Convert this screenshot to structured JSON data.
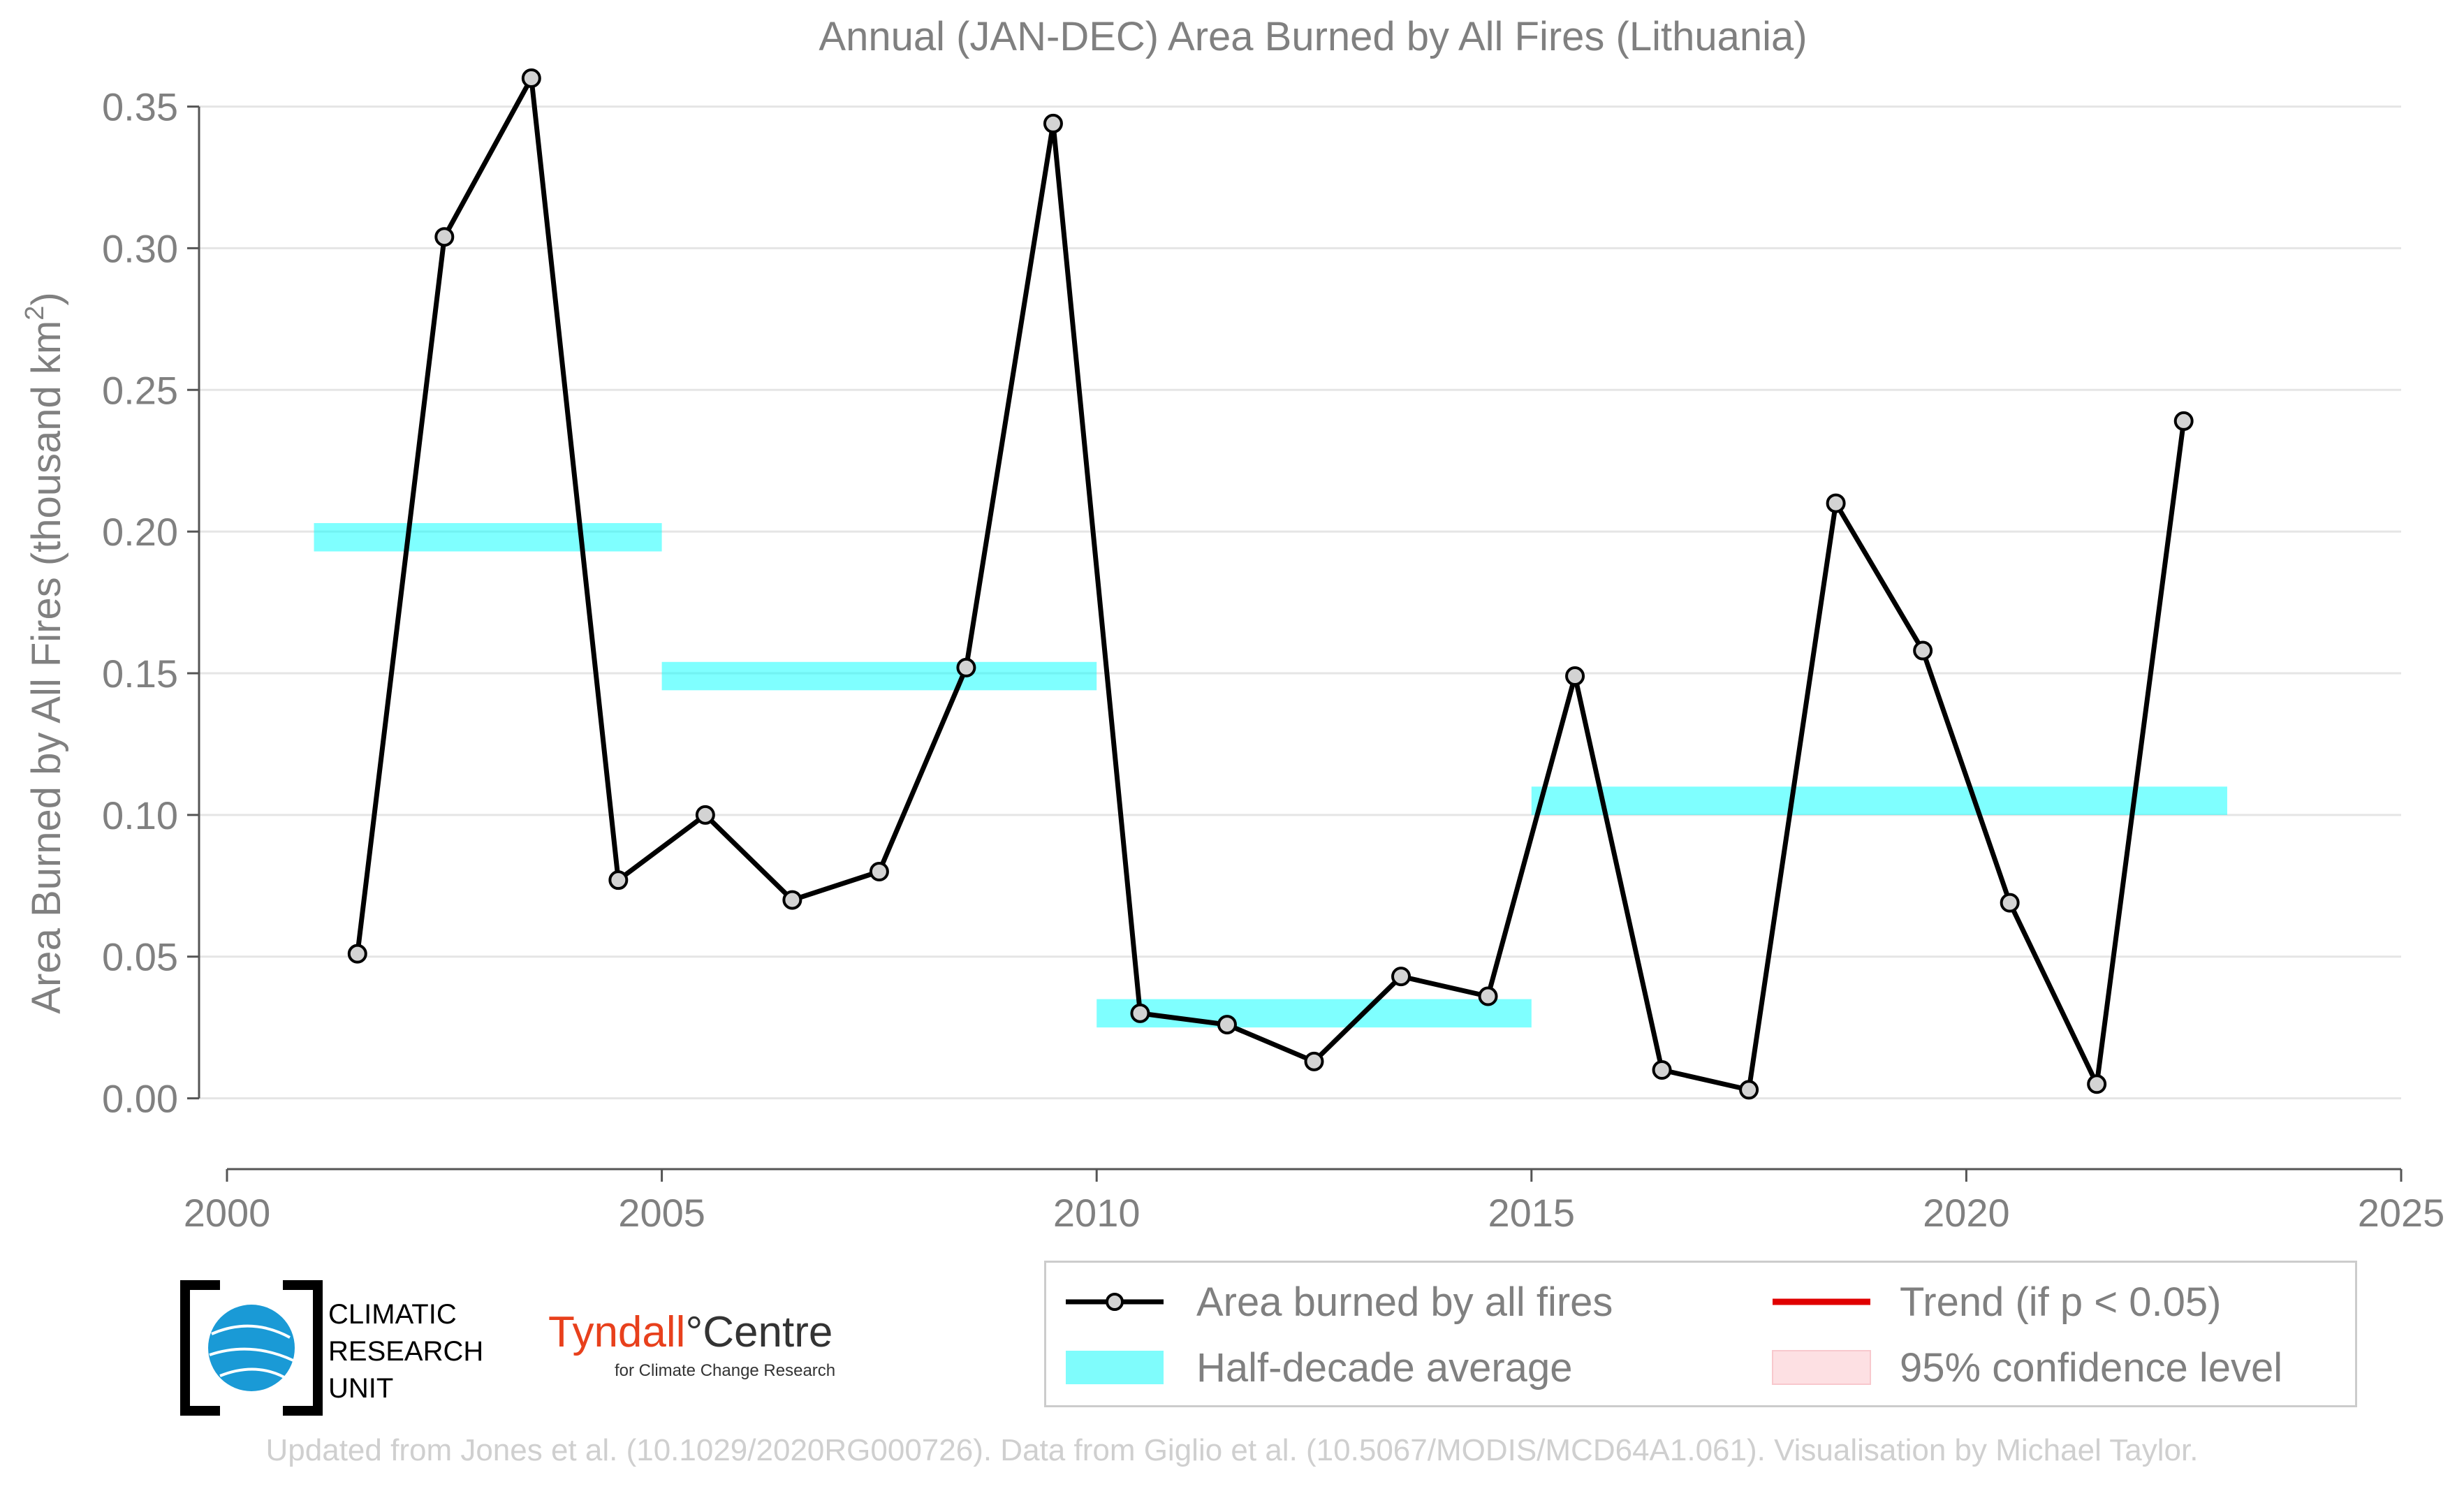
{
  "chart_data": {
    "type": "line",
    "title": "Annual (JAN-DEC) Area Burned by All Fires (Lithuania)",
    "ylabel": "Area Burned by All Fires (thousand km",
    "ylabel_superscript": "2",
    "ylabel_close": ")",
    "xlabel": "",
    "xlim": [
      2000,
      2025
    ],
    "ylim": [
      -0.025,
      0.36
    ],
    "x_ticks": [
      2000,
      2005,
      2010,
      2015,
      2020,
      2025
    ],
    "x_tick_labels": [
      "2000",
      "2005",
      "2010",
      "2015",
      "2020",
      "2025"
    ],
    "y_ticks": [
      0.0,
      0.05,
      0.1,
      0.15,
      0.2,
      0.25,
      0.3,
      0.35
    ],
    "y_tick_labels": [
      "0.00",
      "0.05",
      "0.10",
      "0.15",
      "0.20",
      "0.25",
      "0.30",
      "0.35"
    ],
    "grid": "horizontal",
    "series": [
      {
        "name": "Area burned by all fires",
        "type": "line-markers",
        "color": "#000000",
        "marker_fill": "#d3d3d3",
        "x": [
          2001.5,
          2002.5,
          2003.5,
          2004.5,
          2005.5,
          2006.5,
          2007.5,
          2008.5,
          2009.5,
          2010.5,
          2011.5,
          2012.5,
          2013.5,
          2014.5,
          2015.5,
          2016.5,
          2017.5,
          2018.5,
          2019.5,
          2020.5,
          2021.5,
          2022.5
        ],
        "y": [
          0.051,
          0.304,
          0.36,
          0.077,
          0.1,
          0.07,
          0.08,
          0.152,
          0.344,
          0.03,
          0.026,
          0.013,
          0.043,
          0.036,
          0.149,
          0.01,
          0.003,
          0.21,
          0.158,
          0.069,
          0.005,
          0.239
        ]
      },
      {
        "name": "Half-decade average",
        "type": "band",
        "color": "#00ffff",
        "opacity": 0.5,
        "segments": [
          {
            "x0": 2001,
            "x1": 2005,
            "y0": 0.193,
            "y1": 0.203
          },
          {
            "x0": 2005,
            "x1": 2010,
            "y0": 0.144,
            "y1": 0.154
          },
          {
            "x0": 2010,
            "x1": 2015,
            "y0": 0.025,
            "y1": 0.035
          },
          {
            "x0": 2015,
            "x1": 2023,
            "y0": 0.1,
            "y1": 0.11
          }
        ]
      }
    ],
    "legend": {
      "placement": "bottom-right",
      "entries": [
        {
          "label": "Area burned by all fires",
          "kind": "line-marker",
          "color": "#000000"
        },
        {
          "label": "Trend (if p < 0.05)",
          "kind": "line",
          "color": "#e00000"
        },
        {
          "label": "Half-decade average",
          "kind": "patch",
          "color": "#7ffcfc"
        },
        {
          "label": "95% confidence level",
          "kind": "patch",
          "color": "#fde0e3"
        }
      ]
    },
    "text_color": "#808080"
  },
  "logos": {
    "cru": {
      "line1": "CLIMATIC",
      "line2": "RESEARCH",
      "line3": "UNIT",
      "icon": "globe-icon"
    },
    "tyndall": {
      "name": "Tyndall",
      "suffix": "°Centre",
      "tagline": "for Climate Change Research",
      "color": "#e8401c"
    }
  },
  "footer": "Updated from Jones et al. (10.1029/2020RG000726). Data from Giglio et al. (10.5067/MODIS/MCD64A1.061). Visualisation by Michael Taylor."
}
